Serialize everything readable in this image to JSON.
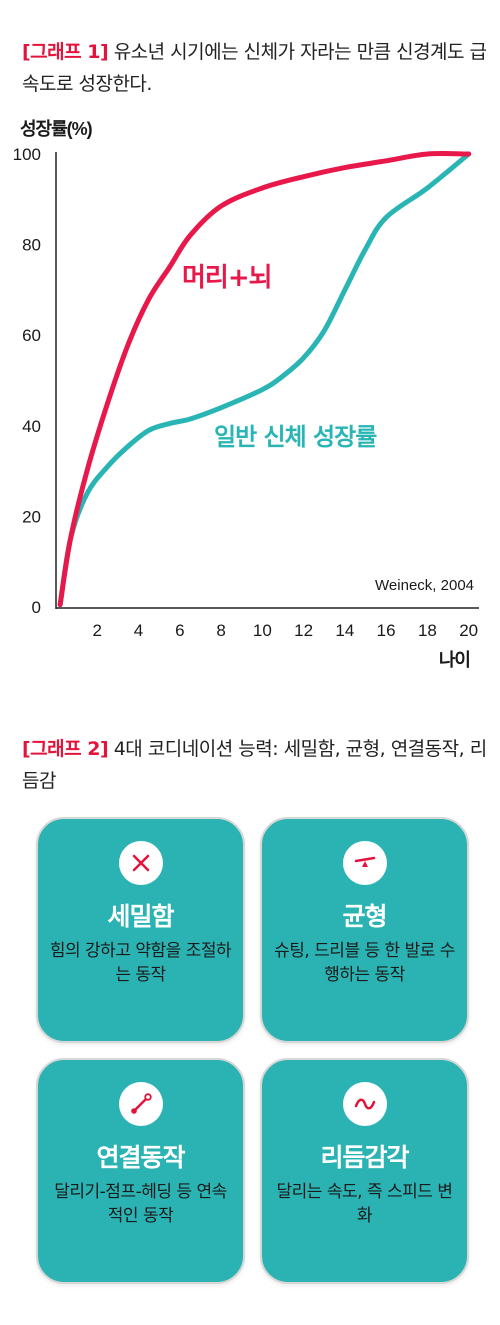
{
  "graph1": {
    "tag": "[그래프 1]",
    "text": " 유소년 시기에는 신체가 자라는 만큼 신경계도 급속도로 성장한다."
  },
  "chart_data": {
    "type": "line",
    "ylabel": "성장률(%)",
    "xlabel": "나이",
    "xlim": [
      0,
      20.5
    ],
    "ylim": [
      0,
      100
    ],
    "x_ticks": [
      2,
      4,
      6,
      8,
      10,
      12,
      14,
      16,
      18,
      20
    ],
    "y_ticks": [
      0,
      20,
      40,
      60,
      80,
      100
    ],
    "grid": false,
    "annotation": "Weineck, 2004",
    "series": [
      {
        "name": "머리+뇌",
        "color": "#e8194a",
        "x": [
          0.2,
          0.7,
          1.5,
          2.5,
          3.5,
          4.5,
          5.5,
          6.5,
          8,
          10,
          12,
          14,
          16,
          18,
          20
        ],
        "y": [
          0.5,
          15,
          30,
          45,
          58,
          68,
          75,
          82,
          88.5,
          92.5,
          95,
          97,
          98.5,
          100,
          100
        ]
      },
      {
        "name": "일반 신체 성장률",
        "color": "#2ab5b5",
        "x": [
          0.2,
          0.7,
          1.5,
          2.5,
          3.5,
          4.5,
          5.5,
          6.5,
          8,
          10,
          11,
          12,
          13,
          14,
          15,
          16,
          18,
          20
        ],
        "y": [
          0.5,
          15,
          25,
          31,
          35.5,
          39,
          40.5,
          41.5,
          44,
          48,
          51,
          55,
          61,
          70,
          79,
          86,
          92.5,
          100
        ]
      }
    ]
  },
  "graph2": {
    "tag": "[그래프 2]",
    "text": " 4대 코디네이션 능력: 세밀함, 균형, 연결동작, 리듬감"
  },
  "cards": [
    {
      "icon": "x-icon",
      "title": "세밀함",
      "desc": "힘의 강하고 약함을 조절하는 동작"
    },
    {
      "icon": "seesaw-icon",
      "title": "균형",
      "desc": "슈팅, 드리블 등 한 발로 수행하는 동작"
    },
    {
      "icon": "link-icon",
      "title": "연결동작",
      "desc": "달리기-점프-헤딩 등 연속적인 동작"
    },
    {
      "icon": "wave-icon",
      "title": "리듬감각",
      "desc": "달리는 속도, 즉 스피드 변화"
    }
  ],
  "colors": {
    "accent_red": "#e3143c",
    "card_teal": "#2bb3b3"
  }
}
